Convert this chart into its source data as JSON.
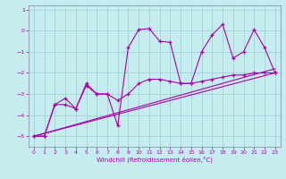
{
  "xlabel": "Windchill (Refroidissement éolien,°C)",
  "background_color": "#c5ecee",
  "grid_color": "#9ecdd4",
  "line_color": "#aa00aa",
  "spine_color": "#8899aa",
  "xlim": [
    -0.5,
    23.5
  ],
  "ylim": [
    -5.5,
    1.2
  ],
  "yticks": [
    1,
    0,
    -1,
    -2,
    -3,
    -4,
    -5
  ],
  "xticks": [
    0,
    1,
    2,
    3,
    4,
    5,
    6,
    7,
    8,
    9,
    10,
    11,
    12,
    13,
    14,
    15,
    16,
    17,
    18,
    19,
    20,
    21,
    22,
    23
  ],
  "line1_x": [
    0,
    1,
    2,
    3,
    4,
    5,
    6,
    7,
    8,
    9,
    10,
    11,
    12,
    13,
    14,
    15,
    16,
    17,
    18,
    19,
    20,
    21,
    22,
    23
  ],
  "line1_y": [
    -5.0,
    -5.0,
    -3.5,
    -3.2,
    -3.7,
    -2.5,
    -3.0,
    -3.0,
    -4.5,
    -0.8,
    0.05,
    0.1,
    -0.5,
    -0.55,
    -2.5,
    -2.5,
    -1.0,
    -0.2,
    0.3,
    -1.3,
    -1.0,
    0.05,
    -0.8,
    -2.0
  ],
  "line2_x": [
    0,
    1,
    2,
    3,
    4,
    5,
    6,
    7,
    8,
    9,
    10,
    11,
    12,
    13,
    14,
    15,
    16,
    17,
    18,
    19,
    20,
    21,
    22,
    23
  ],
  "line2_y": [
    -5.0,
    -5.0,
    -3.5,
    -3.5,
    -3.7,
    -2.6,
    -3.0,
    -3.0,
    -3.3,
    -3.0,
    -2.5,
    -2.3,
    -2.3,
    -2.4,
    -2.5,
    -2.5,
    -2.4,
    -2.3,
    -2.2,
    -2.1,
    -2.1,
    -2.0,
    -2.0,
    -2.0
  ],
  "line3_x": [
    0,
    23
  ],
  "line3_y": [
    -5.0,
    -2.0
  ],
  "line4_x": [
    0,
    23
  ],
  "line4_y": [
    -5.0,
    -1.8
  ]
}
